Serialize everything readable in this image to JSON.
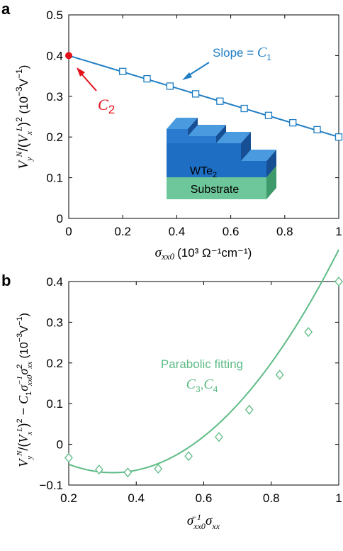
{
  "colors": {
    "line_a": "#1f7ec4",
    "c2_point": "#e3121b",
    "line_b": "#5dbb85",
    "wte2_top": "#4a9ae0",
    "wte2_front": "#1e6fc4",
    "substrate_front": "#6ec79a",
    "substrate_side": "#3e9a6b"
  },
  "chart_data": [
    {
      "type": "line",
      "panel_label": "a",
      "x_label": {
        "sym": "σ",
        "sub": "xx0",
        "unit": "(10³ Ω⁻¹cm⁻¹)"
      },
      "y_label": "V_y^N/(V_x^L)² (10⁻³V⁻¹)",
      "xlim": [
        0,
        1
      ],
      "ylim": [
        0,
        0.5
      ],
      "x_ticks": [
        0,
        0.2,
        0.4,
        0.6,
        0.8,
        1
      ],
      "x_tick_labels": [
        "0",
        "0.2",
        "0.4",
        "0.6",
        "0.8",
        "1"
      ],
      "y_ticks": [
        0,
        0.1,
        0.2,
        0.3,
        0.4,
        0.5
      ],
      "y_tick_labels": [
        "0",
        "0.1",
        "0.2",
        "0.3",
        "0.4",
        "0.5"
      ],
      "series": [
        {
          "marker": "square",
          "x": [
            0.2,
            0.29,
            0.375,
            0.47,
            0.56,
            0.65,
            0.74,
            0.83,
            0.92,
            1.0
          ],
          "y": [
            0.361,
            0.343,
            0.325,
            0.306,
            0.288,
            0.27,
            0.253,
            0.235,
            0.218,
            0.2
          ]
        }
      ],
      "fit_line": {
        "x": [
          0,
          1
        ],
        "y": [
          0.4,
          0.2
        ]
      },
      "highlight_point": {
        "x": 0,
        "y": 0.4,
        "label_base": "C",
        "label_sub": "2"
      },
      "slope_annotation": {
        "text": "Slope = ",
        "sym_base": "C",
        "sym_sub": "1"
      },
      "inset": {
        "layer_top": "WTe",
        "layer_top_sub": "2",
        "layer_bottom": "Substrate"
      }
    },
    {
      "type": "line",
      "panel_label": "b",
      "x_label": "σ_xx0^-1 σ_xx",
      "y_label": "V_y^N/(V_x^L)² − C₁σ_xx0^-1 σ_xx² (10⁻³V⁻¹)",
      "xlim": [
        0.2,
        1
      ],
      "ylim": [
        -0.1,
        0.4
      ],
      "x_ticks": [
        0.2,
        0.4,
        0.6,
        0.8,
        1
      ],
      "x_tick_labels": [
        "0.2",
        "0.4",
        "0.6",
        "0.8",
        "1"
      ],
      "y_ticks": [
        -0.1,
        0,
        0.1,
        0.2,
        0.3,
        0.4
      ],
      "y_tick_labels": [
        "−0.1",
        "0",
        "0.1",
        "0.2",
        "0.3",
        "0.4"
      ],
      "series": [
        {
          "marker": "diamond",
          "x": [
            0.2,
            0.29,
            0.375,
            0.465,
            0.555,
            0.645,
            0.735,
            0.825,
            0.91,
            1.0
          ],
          "y": [
            -0.033,
            -0.062,
            -0.069,
            -0.06,
            -0.029,
            0.018,
            0.085,
            0.171,
            0.276,
            0.4
          ]
        }
      ],
      "fit_curve": {
        "a": 1.22,
        "vertex_x": 0.33,
        "vertex_y": -0.0695
      },
      "annotation": {
        "line1": "Parabolic fitting",
        "sym_base": "C",
        "sub1": "3",
        "sep": ",",
        "sub2": "4"
      }
    }
  ]
}
